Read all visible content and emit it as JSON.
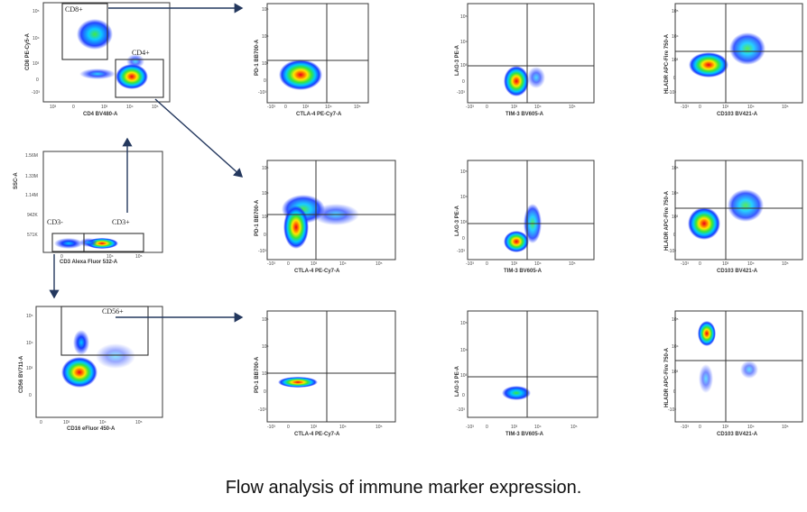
{
  "caption": "Flow analysis of immune marker expression.",
  "colors": {
    "arrow": "#24385e",
    "density": [
      "#1a3cff",
      "#00c8ff",
      "#39e639",
      "#ffe600",
      "#ff6a00",
      "#e8001c"
    ]
  },
  "gating_plots": [
    {
      "id": "cd8-vs-cd4",
      "ylabel": "CD8 PE-Cy5-A",
      "xlabel": "CD4 BV480-A",
      "y_ticks": [
        "10⁵",
        "10⁴",
        "10³",
        "0",
        "-10³"
      ],
      "x_ticks": [
        "10³",
        "0",
        "10³",
        "10⁴",
        "10⁵"
      ],
      "gates": [
        "CD8+",
        "CD4+"
      ]
    },
    {
      "id": "ssc-vs-cd3",
      "ylabel": "SSC-A",
      "xlabel": "CD3 Alexa Fluor 532-A",
      "y_ticks": [
        "1.56M",
        "1.33M",
        "1.14M",
        "942K",
        "571K"
      ],
      "x_ticks": [
        "0",
        "10⁴",
        "10⁵"
      ],
      "gates": [
        "CD3-",
        "CD3+"
      ]
    },
    {
      "id": "cd56-vs-cd16",
      "ylabel": "CD56 BV711-A",
      "xlabel": "CD16 eFluor 450-A",
      "y_ticks": [
        "10⁵",
        "10⁴",
        "10³",
        "0"
      ],
      "x_ticks": [
        "0",
        "10³",
        "10⁴",
        "10⁵"
      ],
      "gates": [
        "CD56+"
      ]
    }
  ],
  "marker_columns": [
    {
      "ylabel": "PD-1 BB700-A",
      "xlabel": "CTLA-4 PE-Cy7-A"
    },
    {
      "ylabel": "LAG-3 PE-A",
      "xlabel": "TIM-3 BV605-A"
    },
    {
      "ylabel": "HLADR APC-Fire 750-A",
      "xlabel": "CD103 BV421-A"
    }
  ],
  "marker_y_ticks": [
    "10⁵",
    "10⁴",
    "10³",
    "0",
    "-10³"
  ],
  "marker_x_ticks": [
    "-10³",
    "0",
    "10³",
    "10⁴",
    "10⁵"
  ]
}
